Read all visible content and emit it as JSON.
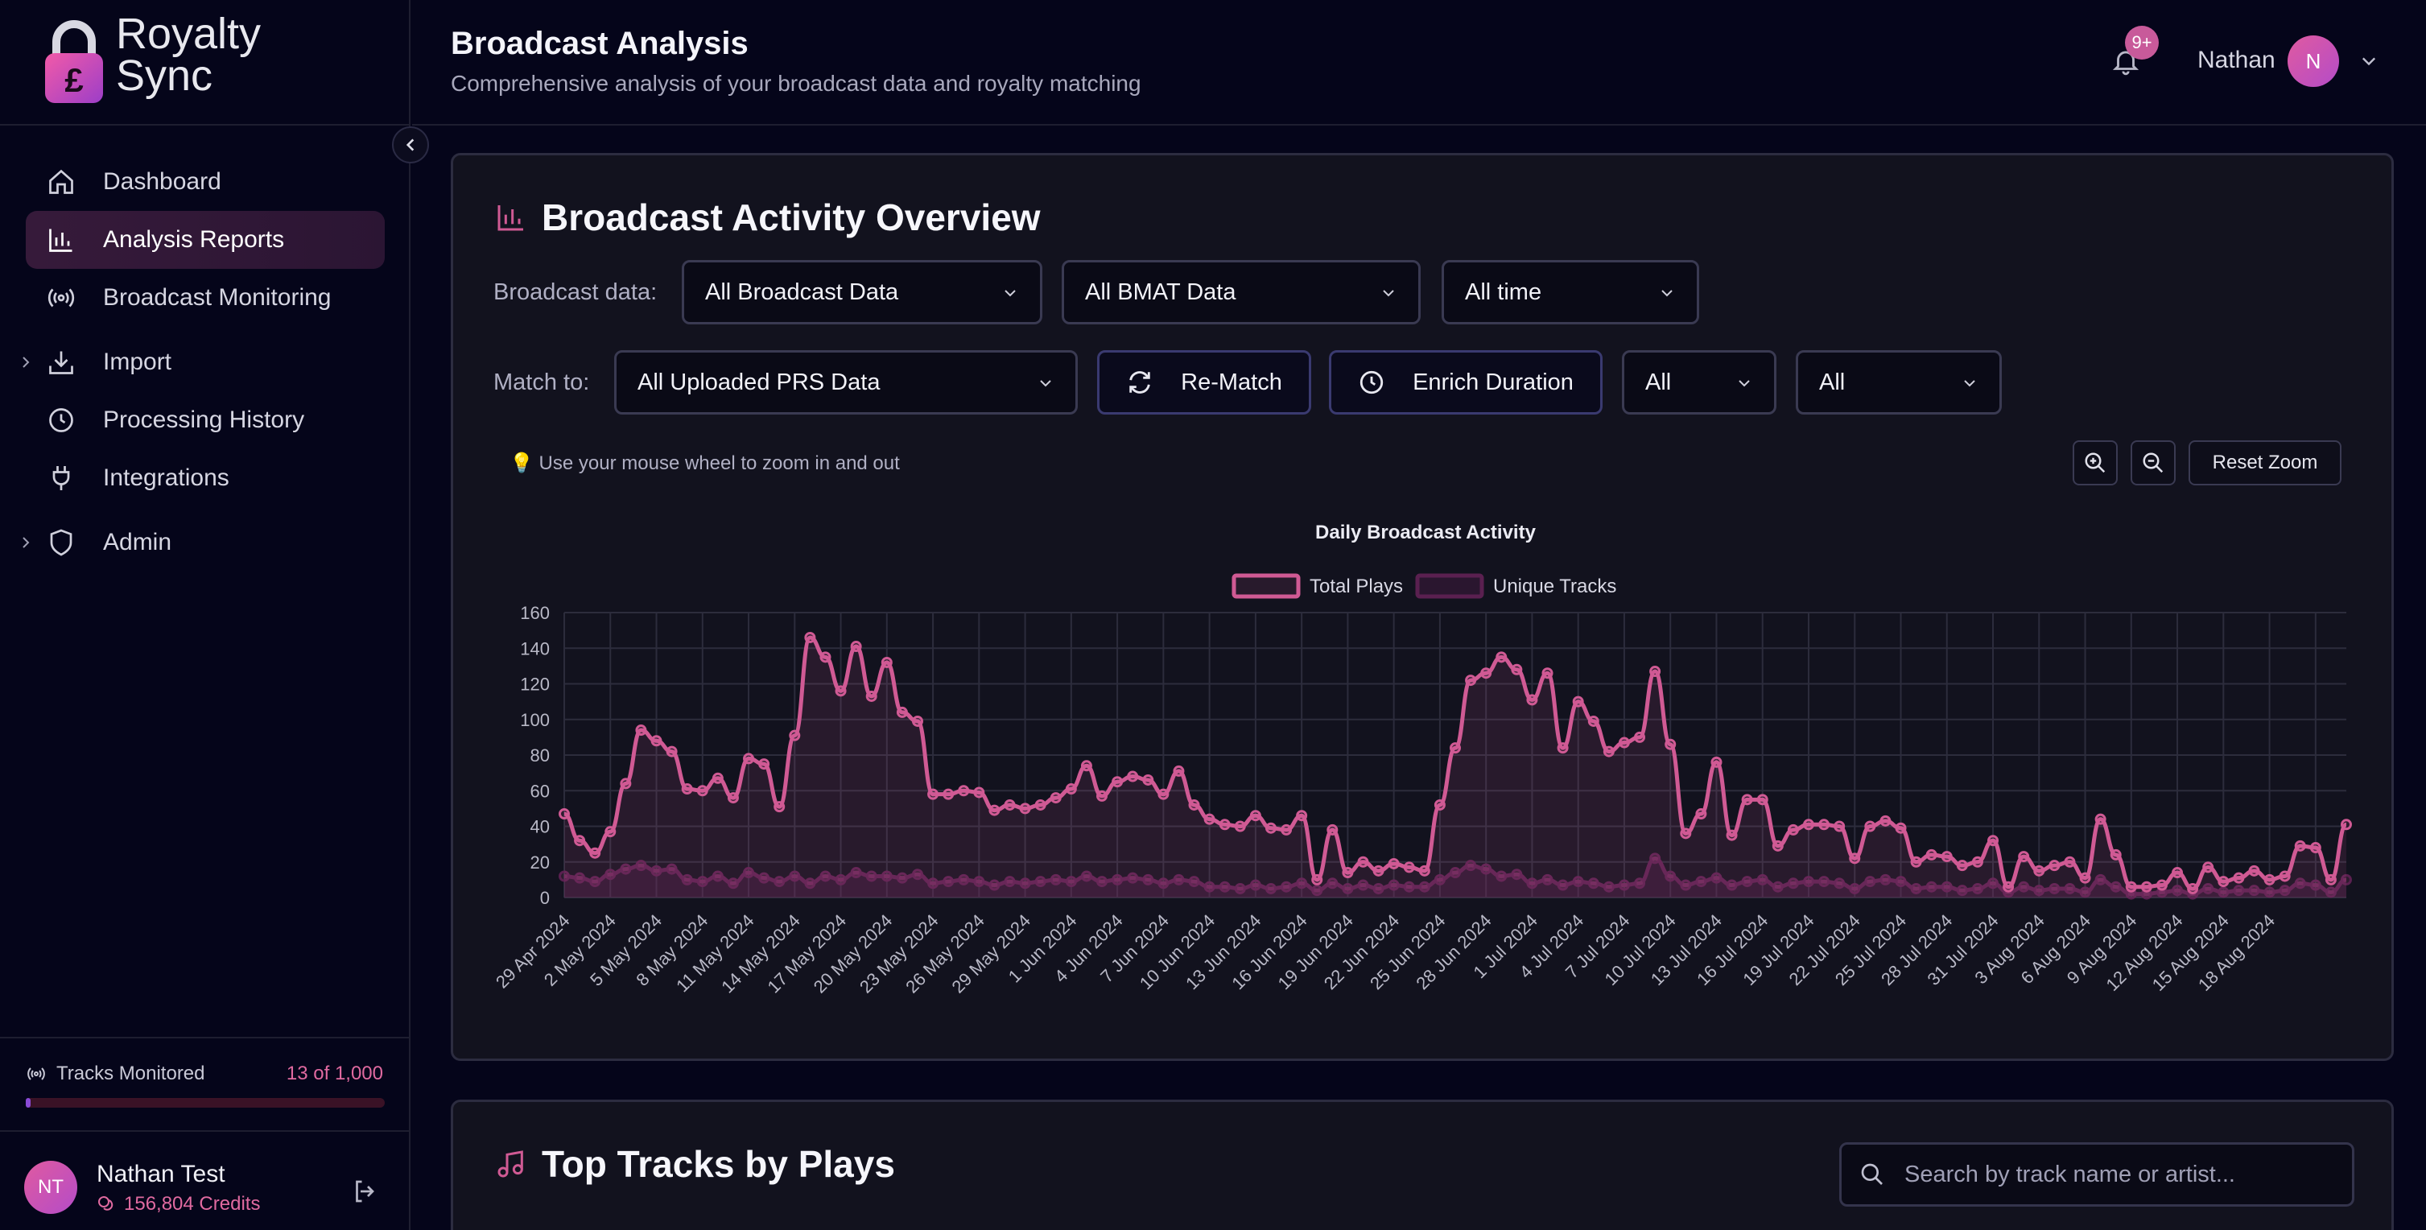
{
  "brand": {
    "line1": "Royalty",
    "line2": "Sync"
  },
  "sidebar": {
    "items": [
      {
        "label": "Dashboard",
        "icon": "home-icon"
      },
      {
        "label": "Analysis Reports",
        "icon": "bar-chart-icon",
        "active": true
      },
      {
        "label": "Broadcast Monitoring",
        "icon": "broadcast-icon"
      },
      {
        "label": "Import",
        "icon": "download-icon",
        "expandable": true
      },
      {
        "label": "Processing History",
        "icon": "clock-icon"
      },
      {
        "label": "Integrations",
        "icon": "plug-icon"
      },
      {
        "label": "Admin",
        "icon": "shield-icon",
        "expandable": true
      }
    ],
    "tracks": {
      "label": "Tracks Monitored",
      "count": "13 of 1,000",
      "progress": 0.013
    },
    "user": {
      "initials": "NT",
      "name": "Nathan Test",
      "credits": "156,804 Credits"
    }
  },
  "header": {
    "title": "Broadcast Analysis",
    "subtitle": "Comprehensive analysis of your broadcast data and royalty matching",
    "badge": "9+",
    "user_name": "Nathan",
    "user_initial": "N"
  },
  "overview": {
    "title": "Broadcast Activity Overview",
    "broadcast_label": "Broadcast data:",
    "broadcast_select": "All Broadcast Data",
    "bmat_select": "All BMAT Data",
    "time_select": "All time",
    "match_label": "Match to:",
    "match_select": "All Uploaded PRS Data",
    "rematch_label": "Re-Match",
    "enrich_label": "Enrich Duration",
    "filter1": "All",
    "filter2": "All",
    "hint": "💡 Use your mouse wheel to zoom in and out",
    "reset_zoom": "Reset Zoom"
  },
  "colors": {
    "accent": "#d05a94",
    "secondary": "#5a2050",
    "card": "#12121e"
  },
  "chart_data": {
    "type": "line",
    "title": "Daily Broadcast Activity",
    "ylim": [
      0,
      160
    ],
    "yticks": [
      0,
      20,
      40,
      60,
      80,
      100,
      120,
      140,
      160
    ],
    "grid": true,
    "legend": "top-center",
    "tick_labels": [
      "29 Apr 2024",
      "2 May 2024",
      "5 May 2024",
      "8 May 2024",
      "11 May 2024",
      "14 May 2024",
      "17 May 2024",
      "20 May 2024",
      "23 May 2024",
      "26 May 2024",
      "29 May 2024",
      "1 Jun 2024",
      "4 Jun 2024",
      "7 Jun 2024",
      "10 Jun 2024",
      "13 Jun 2024",
      "16 Jun 2024",
      "19 Jun 2024",
      "22 Jun 2024",
      "25 Jun 2024",
      "28 Jun 2024",
      "1 Jul 2024",
      "4 Jul 2024",
      "7 Jul 2024",
      "10 Jul 2024",
      "13 Jul 2024",
      "16 Jul 2024",
      "19 Jul 2024",
      "22 Jul 2024",
      "25 Jul 2024",
      "28 Jul 2024",
      "31 Jul 2024",
      "3 Aug 2024",
      "6 Aug 2024",
      "9 Aug 2024",
      "12 Aug 2024",
      "15 Aug 2024",
      "18 Aug 2024"
    ],
    "series": [
      {
        "name": "Total Plays",
        "values": [
          47,
          32,
          25,
          37,
          64,
          94,
          88,
          82,
          61,
          60,
          67,
          56,
          78,
          75,
          51,
          91,
          146,
          135,
          116,
          141,
          113,
          132,
          104,
          99,
          58,
          58,
          60,
          59,
          49,
          52,
          50,
          52,
          56,
          61,
          74,
          57,
          65,
          68,
          66,
          58,
          71,
          52,
          44,
          41,
          40,
          46,
          39,
          38,
          46,
          10,
          38,
          14,
          20,
          15,
          19,
          17,
          15,
          52,
          84,
          122,
          126,
          135,
          128,
          111,
          126,
          84,
          110,
          99,
          82,
          87,
          90,
          127,
          86,
          36,
          47,
          76,
          35,
          55,
          55,
          29,
          38,
          41,
          41,
          40,
          22,
          40,
          43,
          39,
          20,
          24,
          23,
          18,
          20,
          32,
          6,
          23,
          15,
          18,
          20,
          11,
          44,
          24,
          6,
          6,
          7,
          14,
          5,
          17,
          9,
          11,
          15,
          10,
          12,
          29,
          28,
          10,
          41
        ]
      },
      {
        "name": "Unique Tracks",
        "values": [
          12,
          11,
          9,
          13,
          16,
          18,
          15,
          16,
          10,
          9,
          12,
          8,
          14,
          11,
          9,
          12,
          8,
          12,
          10,
          14,
          12,
          12,
          11,
          13,
          8,
          9,
          10,
          9,
          7,
          9,
          8,
          9,
          10,
          9,
          12,
          9,
          10,
          11,
          10,
          8,
          10,
          9,
          6,
          6,
          5,
          7,
          5,
          6,
          8,
          4,
          8,
          5,
          7,
          5,
          7,
          6,
          6,
          10,
          14,
          18,
          16,
          12,
          13,
          8,
          10,
          7,
          9,
          8,
          6,
          7,
          8,
          22,
          12,
          7,
          9,
          11,
          7,
          9,
          10,
          6,
          8,
          9,
          9,
          8,
          5,
          9,
          10,
          9,
          5,
          6,
          6,
          4,
          5,
          8,
          3,
          6,
          4,
          5,
          5,
          3,
          10,
          6,
          2,
          2,
          3,
          4,
          2,
          5,
          3,
          4,
          4,
          3,
          4,
          8,
          7,
          3,
          10
        ]
      }
    ]
  },
  "top_tracks": {
    "title": "Top Tracks by Plays",
    "search_placeholder": "Search by track name or artist..."
  }
}
